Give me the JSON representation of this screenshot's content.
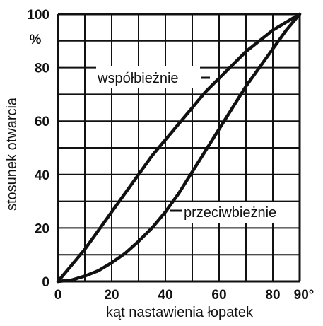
{
  "chart_data": {
    "type": "line",
    "xlabel": "kąt nastawienia łopatek",
    "ylabel": "stosunek otwarcia",
    "y_unit": "%",
    "x_end_label": "90°",
    "xlim": [
      0,
      90
    ],
    "ylim": [
      0,
      100
    ],
    "x_ticks": [
      0,
      20,
      40,
      60,
      80
    ],
    "y_ticks": [
      0,
      20,
      40,
      60,
      80,
      100
    ],
    "x_grid": [
      0,
      10,
      20,
      30,
      40,
      50,
      60,
      70,
      80,
      90
    ],
    "y_grid": [
      0,
      10,
      20,
      30,
      40,
      50,
      60,
      70,
      80,
      90,
      100
    ],
    "grid": true,
    "series": [
      {
        "name": "współbieżnie",
        "x": [
          0,
          5,
          10,
          15,
          20,
          25,
          30,
          35,
          40,
          45,
          50,
          55,
          60,
          65,
          70,
          75,
          80,
          85,
          90
        ],
        "y": [
          0,
          6,
          12,
          19,
          26,
          33,
          40,
          47,
          53,
          59,
          65,
          71,
          76,
          81,
          86,
          90,
          94,
          97,
          100
        ]
      },
      {
        "name": "przeciwbieżnie",
        "x": [
          0,
          5,
          10,
          15,
          20,
          25,
          30,
          35,
          40,
          45,
          50,
          55,
          60,
          65,
          70,
          75,
          80,
          85,
          90
        ],
        "y": [
          0,
          0.5,
          2,
          4,
          7,
          10.5,
          15,
          20,
          26,
          33,
          41,
          49,
          57,
          65,
          73,
          80,
          87,
          94,
          100
        ]
      }
    ]
  }
}
